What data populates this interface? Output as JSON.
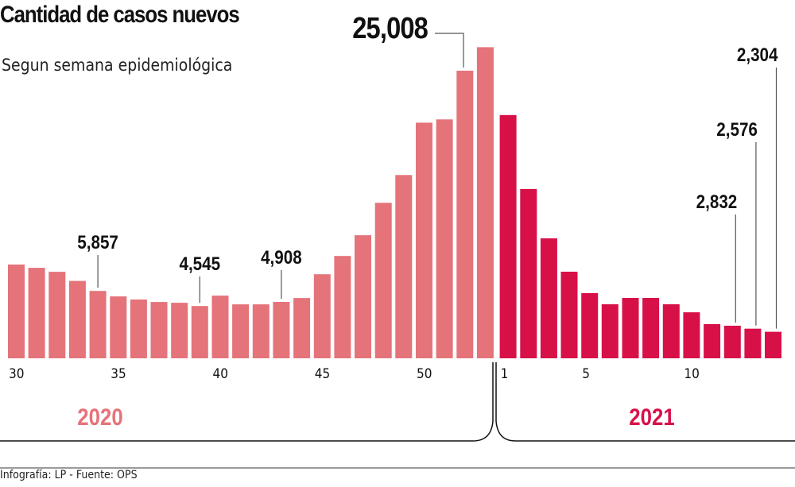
{
  "header": {
    "title": "Cantidad de casos nuevos",
    "subtitle": "Segun semana epidemiológica"
  },
  "footer": {
    "credit": "Infografía: LP - Fuente: OPS"
  },
  "colors": {
    "year_2020": "#e5737a",
    "year_2021": "#d81048",
    "label": "#111111",
    "leader": "#555555"
  },
  "chart_data": {
    "type": "bar",
    "title": "Cantidad de casos nuevos",
    "subtitle": "Segun semana epidemiológica",
    "xlabel": "Semana epidemiológica",
    "ylabel": "Casos nuevos",
    "ylim": [
      0,
      28000
    ],
    "grid": false,
    "series": [
      {
        "name": "2020",
        "color": "#e5737a",
        "weeks": [
          30,
          31,
          32,
          33,
          34,
          35,
          36,
          37,
          38,
          39,
          40,
          41,
          42,
          43,
          44,
          45,
          46,
          47,
          48,
          49,
          50,
          51,
          52,
          53
        ],
        "values": [
          8150,
          7870,
          7520,
          6730,
          5857,
          5380,
          5110,
          4900,
          4830,
          4545,
          5450,
          4690,
          4690,
          4908,
          5240,
          7310,
          8900,
          10700,
          13520,
          15940,
          20490,
          20770,
          25008,
          27050
        ]
      },
      {
        "name": "2021",
        "color": "#d81048",
        "weeks": [
          1,
          2,
          3,
          4,
          5,
          6,
          7,
          8,
          9,
          10,
          11,
          12,
          13,
          14
        ],
        "values": [
          21150,
          14720,
          10430,
          7530,
          5670,
          4700,
          5250,
          5250,
          4700,
          4000,
          2970,
          2832,
          2576,
          2304
        ]
      }
    ],
    "tick_labels_2020": [
      {
        "week": 30,
        "label": "30"
      },
      {
        "week": 35,
        "label": "35"
      },
      {
        "week": 40,
        "label": "40"
      },
      {
        "week": 45,
        "label": "45"
      },
      {
        "week": 50,
        "label": "50"
      }
    ],
    "tick_labels_2021": [
      {
        "week": 1,
        "label": "1"
      },
      {
        "week": 5,
        "label": "5"
      },
      {
        "week": 10,
        "label": "10"
      }
    ],
    "annotations": [
      {
        "series": "2020",
        "week": 34,
        "label": "5,857",
        "style": "small"
      },
      {
        "series": "2020",
        "week": 39,
        "label": "4,545",
        "style": "small"
      },
      {
        "series": "2020",
        "week": 43,
        "label": "4,908",
        "style": "small"
      },
      {
        "series": "2020",
        "week": 52,
        "label": "25,008",
        "style": "large"
      },
      {
        "series": "2021",
        "week": 12,
        "label": "2,832",
        "style": "small"
      },
      {
        "series": "2021",
        "week": 13,
        "label": "2,576",
        "style": "small"
      },
      {
        "series": "2021",
        "week": 14,
        "label": "2,304",
        "style": "small"
      }
    ],
    "year_labels": [
      {
        "series": "2020",
        "label": "2020"
      },
      {
        "series": "2021",
        "label": "2021"
      }
    ]
  }
}
